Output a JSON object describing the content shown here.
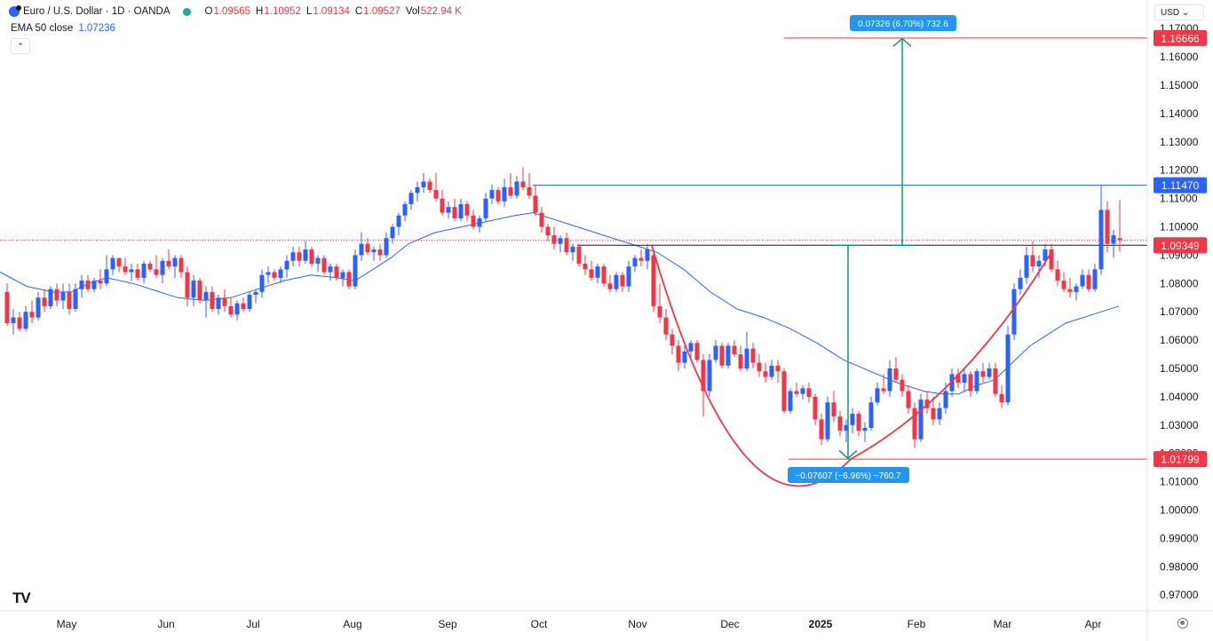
{
  "header": {
    "symbol": "Euro / U.S. Dollar · 1D · OANDA",
    "open_label": "O",
    "open": "1.09565",
    "high_label": "H",
    "high": "1.10952",
    "low_label": "L",
    "low": "1.09134",
    "close_label": "C",
    "close": "1.09527",
    "vol_label": "Vol",
    "vol": "522.94 K",
    "ema_name": "EMA 50 close",
    "ema_value": "1.07236",
    "collapse_glyph": "⌃"
  },
  "currency_button": "USD ⌄",
  "tv_logo": "TV",
  "colors": {
    "up": "#2962ff",
    "down": "#f23645",
    "ema": "#2962ff",
    "cup": "#f23645",
    "arrow": "#089981",
    "resistance": "#2962ff"
  },
  "chart_data": {
    "type": "candlestick",
    "xlabels": [
      "May",
      "Jun",
      "Jul",
      "Aug",
      "Sep",
      "Oct",
      "Nov",
      "Dec",
      "2025",
      "Feb",
      "Mar",
      "Apr"
    ],
    "ylim": [
      0.965,
      1.175
    ],
    "yticks": [
      "1.17000",
      "1.16000",
      "1.15000",
      "1.14000",
      "1.13000",
      "1.12000",
      "1.11000",
      "1.10000",
      "1.09000",
      "1.08000",
      "1.07000",
      "1.06000",
      "1.05000",
      "1.04000",
      "1.03000",
      "1.02000",
      "1.01000",
      "1.00000",
      "0.99000",
      "0.98000",
      "0.97000"
    ],
    "price_labels": [
      {
        "text": "1.16666",
        "value": 1.16666,
        "color": "#f23645"
      },
      {
        "text": "1.11470",
        "value": 1.1147,
        "color": "#2962ff"
      },
      {
        "text": "1.09349",
        "value": 1.09349,
        "color": "#f23645"
      },
      {
        "text": "1.01799",
        "value": 1.01799,
        "color": "#f23645"
      }
    ],
    "measure_up_label": "0.07326 (6.70%) 732.6",
    "measure_down_label": "−0.07607 (−6.96%) −760.7",
    "ema": [
      [
        0,
        1.084
      ],
      [
        30,
        1.079
      ],
      [
        60,
        1.077
      ],
      [
        80,
        1.077
      ],
      [
        100,
        1.08
      ],
      [
        120,
        1.082
      ],
      [
        150,
        1.08
      ],
      [
        180,
        1.077
      ],
      [
        200,
        1.075
      ],
      [
        230,
        1.074
      ],
      [
        260,
        1.075
      ],
      [
        290,
        1.078
      ],
      [
        320,
        1.081
      ],
      [
        350,
        1.083
      ],
      [
        380,
        1.082
      ],
      [
        400,
        1.081
      ],
      [
        420,
        1.085
      ],
      [
        440,
        1.089
      ],
      [
        460,
        1.094
      ],
      [
        490,
        1.098
      ],
      [
        520,
        1.1
      ],
      [
        550,
        1.102
      ],
      [
        580,
        1.104
      ],
      [
        600,
        1.105
      ],
      [
        620,
        1.103
      ],
      [
        650,
        1.1
      ],
      [
        680,
        1.097
      ],
      [
        710,
        1.094
      ],
      [
        740,
        1.091
      ],
      [
        770,
        1.085
      ],
      [
        800,
        1.077
      ],
      [
        830,
        1.071
      ],
      [
        860,
        1.068
      ],
      [
        890,
        1.064
      ],
      [
        920,
        1.059
      ],
      [
        950,
        1.053
      ],
      [
        980,
        1.049
      ],
      [
        1010,
        1.045
      ],
      [
        1040,
        1.042
      ],
      [
        1060,
        1.041
      ],
      [
        1080,
        1.041
      ],
      [
        1100,
        1.044
      ],
      [
        1120,
        1.046
      ],
      [
        1140,
        1.052
      ],
      [
        1160,
        1.058
      ],
      [
        1180,
        1.062
      ],
      [
        1200,
        1.066
      ],
      [
        1220,
        1.068
      ],
      [
        1240,
        1.07
      ],
      [
        1260,
        1.072
      ]
    ],
    "candles": [
      [
        8,
        1.077,
        1.08,
        1.065,
        1.066
      ],
      [
        15,
        1.066,
        1.071,
        1.062,
        1.068
      ],
      [
        22,
        1.068,
        1.07,
        1.063,
        1.064
      ],
      [
        29,
        1.064,
        1.072,
        1.063,
        1.07
      ],
      [
        36,
        1.07,
        1.074,
        1.066,
        1.068
      ],
      [
        43,
        1.068,
        1.077,
        1.067,
        1.075
      ],
      [
        50,
        1.075,
        1.078,
        1.07,
        1.072
      ],
      [
        57,
        1.072,
        1.079,
        1.071,
        1.078
      ],
      [
        64,
        1.078,
        1.08,
        1.072,
        1.074
      ],
      [
        71,
        1.074,
        1.08,
        1.071,
        1.077
      ],
      [
        78,
        1.077,
        1.08,
        1.069,
        1.071
      ],
      [
        85,
        1.071,
        1.08,
        1.07,
        1.078
      ],
      [
        92,
        1.078,
        1.083,
        1.075,
        1.081
      ],
      [
        99,
        1.081,
        1.083,
        1.077,
        1.078
      ],
      [
        106,
        1.078,
        1.082,
        1.077,
        1.081
      ],
      [
        113,
        1.081,
        1.085,
        1.078,
        1.08
      ],
      [
        120,
        1.08,
        1.09,
        1.079,
        1.085
      ],
      [
        127,
        1.085,
        1.09,
        1.083,
        1.089
      ],
      [
        134,
        1.089,
        1.089,
        1.084,
        1.086
      ],
      [
        141,
        1.086,
        1.089,
        1.083,
        1.084
      ],
      [
        148,
        1.084,
        1.087,
        1.081,
        1.085
      ],
      [
        155,
        1.085,
        1.087,
        1.081,
        1.082
      ],
      [
        162,
        1.082,
        1.088,
        1.08,
        1.087
      ],
      [
        169,
        1.087,
        1.088,
        1.084,
        1.085
      ],
      [
        176,
        1.085,
        1.09,
        1.082,
        1.083
      ],
      [
        183,
        1.083,
        1.089,
        1.08,
        1.088
      ],
      [
        190,
        1.088,
        1.092,
        1.085,
        1.086
      ],
      [
        197,
        1.086,
        1.09,
        1.082,
        1.089
      ],
      [
        204,
        1.089,
        1.09,
        1.082,
        1.084
      ],
      [
        211,
        1.084,
        1.086,
        1.072,
        1.075
      ],
      [
        218,
        1.075,
        1.083,
        1.072,
        1.081
      ],
      [
        225,
        1.081,
        1.082,
        1.073,
        1.074
      ],
      [
        232,
        1.074,
        1.079,
        1.068,
        1.077
      ],
      [
        239,
        1.077,
        1.079,
        1.07,
        1.071
      ],
      [
        246,
        1.071,
        1.076,
        1.069,
        1.075
      ],
      [
        253,
        1.075,
        1.078,
        1.07,
        1.072
      ],
      [
        260,
        1.072,
        1.075,
        1.068,
        1.069
      ],
      [
        267,
        1.069,
        1.074,
        1.067,
        1.073
      ],
      [
        274,
        1.073,
        1.075,
        1.07,
        1.071
      ],
      [
        281,
        1.071,
        1.077,
        1.07,
        1.076
      ],
      [
        288,
        1.076,
        1.078,
        1.073,
        1.077
      ],
      [
        295,
        1.077,
        1.085,
        1.075,
        1.083
      ],
      [
        302,
        1.083,
        1.086,
        1.08,
        1.084
      ],
      [
        309,
        1.084,
        1.085,
        1.081,
        1.082
      ],
      [
        316,
        1.082,
        1.086,
        1.08,
        1.085
      ],
      [
        323,
        1.085,
        1.09,
        1.082,
        1.088
      ],
      [
        330,
        1.088,
        1.093,
        1.086,
        1.091
      ],
      [
        337,
        1.091,
        1.093,
        1.086,
        1.088
      ],
      [
        344,
        1.088,
        1.095,
        1.087,
        1.092
      ],
      [
        351,
        1.092,
        1.093,
        1.086,
        1.087
      ],
      [
        358,
        1.087,
        1.09,
        1.084,
        1.089
      ],
      [
        365,
        1.089,
        1.09,
        1.083,
        1.084
      ],
      [
        372,
        1.084,
        1.087,
        1.081,
        1.086
      ],
      [
        379,
        1.086,
        1.087,
        1.081,
        1.082
      ],
      [
        386,
        1.082,
        1.085,
        1.079,
        1.084
      ],
      [
        393,
        1.084,
        1.085,
        1.078,
        1.079
      ],
      [
        400,
        1.079,
        1.092,
        1.078,
        1.09
      ],
      [
        407,
        1.09,
        1.098,
        1.088,
        1.094
      ],
      [
        414,
        1.094,
        1.096,
        1.09,
        1.091
      ],
      [
        421,
        1.091,
        1.093,
        1.088,
        1.092
      ],
      [
        428,
        1.092,
        1.094,
        1.088,
        1.09
      ],
      [
        435,
        1.09,
        1.098,
        1.089,
        1.096
      ],
      [
        442,
        1.096,
        1.101,
        1.094,
        1.1
      ],
      [
        449,
        1.1,
        1.105,
        1.097,
        1.104
      ],
      [
        456,
        1.104,
        1.109,
        1.102,
        1.108
      ],
      [
        463,
        1.108,
        1.113,
        1.106,
        1.112
      ],
      [
        470,
        1.112,
        1.116,
        1.109,
        1.114
      ],
      [
        477,
        1.114,
        1.119,
        1.112,
        1.116
      ],
      [
        484,
        1.116,
        1.117,
        1.112,
        1.113
      ],
      [
        491,
        1.113,
        1.119,
        1.109,
        1.11
      ],
      [
        498,
        1.11,
        1.113,
        1.104,
        1.105
      ],
      [
        505,
        1.105,
        1.109,
        1.103,
        1.107
      ],
      [
        512,
        1.107,
        1.11,
        1.102,
        1.103
      ],
      [
        519,
        1.103,
        1.11,
        1.102,
        1.108
      ],
      [
        526,
        1.108,
        1.109,
        1.102,
        1.104
      ],
      [
        533,
        1.104,
        1.106,
        1.099,
        1.1
      ],
      [
        540,
        1.1,
        1.104,
        1.098,
        1.103
      ],
      [
        547,
        1.103,
        1.112,
        1.102,
        1.11
      ],
      [
        554,
        1.11,
        1.115,
        1.108,
        1.113
      ],
      [
        561,
        1.113,
        1.114,
        1.108,
        1.109
      ],
      [
        568,
        1.109,
        1.117,
        1.107,
        1.114
      ],
      [
        575,
        1.114,
        1.119,
        1.11,
        1.111
      ],
      [
        582,
        1.111,
        1.118,
        1.11,
        1.116
      ],
      [
        589,
        1.116,
        1.121,
        1.113,
        1.114
      ],
      [
        596,
        1.114,
        1.119,
        1.11,
        1.111
      ],
      [
        603,
        1.111,
        1.115,
        1.104,
        1.105
      ],
      [
        610,
        1.105,
        1.107,
        1.098,
        1.1
      ],
      [
        617,
        1.1,
        1.101,
        1.095,
        1.097
      ],
      [
        624,
        1.097,
        1.1,
        1.092,
        1.094
      ],
      [
        631,
        1.094,
        1.097,
        1.091,
        1.096
      ],
      [
        638,
        1.096,
        1.098,
        1.09,
        1.091
      ],
      [
        645,
        1.091,
        1.094,
        1.088,
        1.093
      ],
      [
        652,
        1.093,
        1.094,
        1.086,
        1.087
      ],
      [
        659,
        1.087,
        1.09,
        1.083,
        1.085
      ],
      [
        666,
        1.085,
        1.088,
        1.081,
        1.082
      ],
      [
        673,
        1.082,
        1.087,
        1.08,
        1.086
      ],
      [
        680,
        1.086,
        1.087,
        1.079,
        1.08
      ],
      [
        687,
        1.08,
        1.083,
        1.077,
        1.078
      ],
      [
        694,
        1.078,
        1.084,
        1.077,
        1.083
      ],
      [
        701,
        1.083,
        1.084,
        1.077,
        1.079
      ],
      [
        708,
        1.079,
        1.088,
        1.077,
        1.086
      ],
      [
        715,
        1.086,
        1.09,
        1.084,
        1.089
      ],
      [
        722,
        1.089,
        1.092,
        1.086,
        1.088
      ],
      [
        729,
        1.088,
        1.094,
        1.085,
        1.092
      ],
      [
        736,
        1.09,
        1.091,
        1.07,
        1.072
      ],
      [
        743,
        1.072,
        1.08,
        1.066,
        1.068
      ],
      [
        750,
        1.068,
        1.071,
        1.06,
        1.062
      ],
      [
        757,
        1.062,
        1.064,
        1.055,
        1.058
      ],
      [
        764,
        1.058,
        1.06,
        1.049,
        1.052
      ],
      [
        771,
        1.052,
        1.058,
        1.05,
        1.056
      ],
      [
        778,
        1.056,
        1.06,
        1.054,
        1.059
      ],
      [
        785,
        1.059,
        1.06,
        1.052,
        1.053
      ],
      [
        792,
        1.053,
        1.055,
        1.033,
        1.042
      ],
      [
        799,
        1.042,
        1.055,
        1.04,
        1.053
      ],
      [
        806,
        1.053,
        1.06,
        1.052,
        1.058
      ],
      [
        813,
        1.058,
        1.059,
        1.05,
        1.051
      ],
      [
        820,
        1.051,
        1.059,
        1.05,
        1.058
      ],
      [
        827,
        1.058,
        1.06,
        1.054,
        1.055
      ],
      [
        834,
        1.055,
        1.058,
        1.049,
        1.05
      ],
      [
        841,
        1.05,
        1.063,
        1.049,
        1.057
      ],
      [
        848,
        1.057,
        1.059,
        1.05,
        1.052
      ],
      [
        855,
        1.052,
        1.055,
        1.047,
        1.049
      ],
      [
        862,
        1.049,
        1.052,
        1.045,
        1.047
      ],
      [
        869,
        1.047,
        1.053,
        1.046,
        1.051
      ],
      [
        876,
        1.051,
        1.053,
        1.045,
        1.049
      ],
      [
        883,
        1.049,
        1.05,
        1.034,
        1.035
      ],
      [
        890,
        1.035,
        1.043,
        1.034,
        1.042
      ],
      [
        897,
        1.042,
        1.045,
        1.04,
        1.041
      ],
      [
        904,
        1.041,
        1.044,
        1.039,
        1.043
      ],
      [
        911,
        1.043,
        1.045,
        1.038,
        1.04
      ],
      [
        918,
        1.04,
        1.041,
        1.03,
        1.032
      ],
      [
        925,
        1.032,
        1.034,
        1.023,
        1.025
      ],
      [
        932,
        1.025,
        1.04,
        1.024,
        1.038
      ],
      [
        939,
        1.038,
        1.042,
        1.031,
        1.033
      ],
      [
        946,
        1.033,
        1.035,
        1.026,
        1.028
      ],
      [
        953,
        1.028,
        1.032,
        1.024,
        1.03
      ],
      [
        960,
        1.03,
        1.036,
        1.027,
        1.034
      ],
      [
        967,
        1.034,
        1.035,
        1.026,
        1.028
      ],
      [
        974,
        1.028,
        1.031,
        1.024,
        1.029
      ],
      [
        981,
        1.029,
        1.04,
        1.028,
        1.038
      ],
      [
        988,
        1.038,
        1.045,
        1.037,
        1.043
      ],
      [
        995,
        1.043,
        1.048,
        1.041,
        1.042
      ],
      [
        1002,
        1.042,
        1.053,
        1.04,
        1.05
      ],
      [
        1009,
        1.05,
        1.054,
        1.045,
        1.046
      ],
      [
        1016,
        1.046,
        1.048,
        1.04,
        1.042
      ],
      [
        1023,
        1.042,
        1.044,
        1.034,
        1.036
      ],
      [
        1030,
        1.036,
        1.038,
        1.022,
        1.025
      ],
      [
        1037,
        1.025,
        1.041,
        1.024,
        1.039
      ],
      [
        1044,
        1.039,
        1.042,
        1.034,
        1.036
      ],
      [
        1051,
        1.036,
        1.04,
        1.03,
        1.032
      ],
      [
        1058,
        1.032,
        1.038,
        1.03,
        1.036
      ],
      [
        1065,
        1.036,
        1.045,
        1.034,
        1.042
      ],
      [
        1072,
        1.042,
        1.05,
        1.04,
        1.048
      ],
      [
        1079,
        1.048,
        1.05,
        1.043,
        1.045
      ],
      [
        1086,
        1.045,
        1.05,
        1.042,
        1.048
      ],
      [
        1093,
        1.048,
        1.049,
        1.04,
        1.042
      ],
      [
        1100,
        1.042,
        1.05,
        1.041,
        1.049
      ],
      [
        1107,
        1.049,
        1.052,
        1.045,
        1.047
      ],
      [
        1114,
        1.047,
        1.052,
        1.046,
        1.05
      ],
      [
        1121,
        1.05,
        1.052,
        1.04,
        1.041
      ],
      [
        1128,
        1.041,
        1.044,
        1.036,
        1.038
      ],
      [
        1135,
        1.038,
        1.065,
        1.037,
        1.062
      ],
      [
        1142,
        1.062,
        1.08,
        1.06,
        1.078
      ],
      [
        1149,
        1.078,
        1.085,
        1.076,
        1.082
      ],
      [
        1156,
        1.082,
        1.093,
        1.08,
        1.09
      ],
      [
        1163,
        1.09,
        1.095,
        1.084,
        1.086
      ],
      [
        1170,
        1.086,
        1.09,
        1.082,
        1.088
      ],
      [
        1177,
        1.088,
        1.094,
        1.086,
        1.092
      ],
      [
        1184,
        1.092,
        1.094,
        1.084,
        1.085
      ],
      [
        1191,
        1.085,
        1.088,
        1.079,
        1.081
      ],
      [
        1198,
        1.081,
        1.084,
        1.077,
        1.078
      ],
      [
        1205,
        1.078,
        1.082,
        1.075,
        1.077
      ],
      [
        1212,
        1.077,
        1.08,
        1.074,
        1.079
      ],
      [
        1219,
        1.079,
        1.085,
        1.078,
        1.083
      ],
      [
        1226,
        1.083,
        1.085,
        1.077,
        1.078
      ],
      [
        1233,
        1.078,
        1.087,
        1.077,
        1.085
      ],
      [
        1240,
        1.085,
        1.1147,
        1.083,
        1.106
      ],
      [
        1247,
        1.106,
        1.109,
        1.091,
        1.094
      ],
      [
        1254,
        1.094,
        1.099,
        1.089,
        1.097
      ],
      [
        1261,
        1.096,
        1.1095,
        1.0913,
        1.0953
      ]
    ]
  }
}
